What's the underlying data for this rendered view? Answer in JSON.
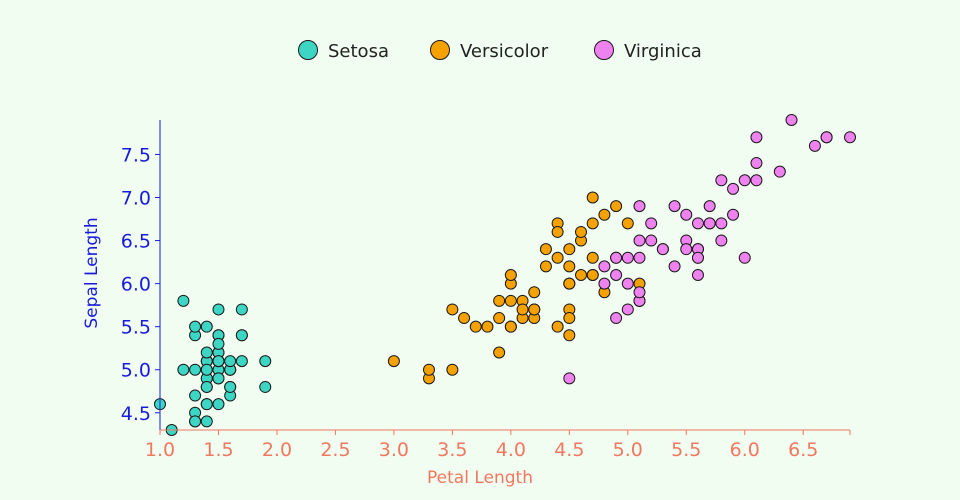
{
  "chart_data": {
    "type": "scatter",
    "xlabel": "Petal Length",
    "ylabel": "Sepal Length",
    "xlim": [
      1.0,
      6.9
    ],
    "ylim": [
      4.3,
      7.9
    ],
    "xticks": [
      "1.0",
      "1.5",
      "2.0",
      "2.5",
      "3.0",
      "3.5",
      "4.0",
      "4.5",
      "5.0",
      "5.5",
      "6.0",
      "6.5"
    ],
    "yticks": [
      "4.5",
      "5.0",
      "5.5",
      "6.0",
      "6.5",
      "7.0",
      "7.5"
    ],
    "x_axis_color": "#f07860",
    "y_axis_color": "#1a1adf",
    "legend_position": "top-center",
    "series": [
      {
        "name": "Setosa",
        "color": "#3dd6c4",
        "points": [
          [
            1.4,
            5.1
          ],
          [
            1.4,
            4.9
          ],
          [
            1.3,
            4.7
          ],
          [
            1.5,
            4.6
          ],
          [
            1.4,
            5.0
          ],
          [
            1.7,
            5.4
          ],
          [
            1.4,
            4.6
          ],
          [
            1.5,
            5.0
          ],
          [
            1.4,
            4.4
          ],
          [
            1.5,
            4.9
          ],
          [
            1.5,
            5.4
          ],
          [
            1.6,
            4.8
          ],
          [
            1.4,
            4.8
          ],
          [
            1.1,
            4.3
          ],
          [
            1.2,
            5.8
          ],
          [
            1.5,
            5.7
          ],
          [
            1.3,
            5.4
          ],
          [
            1.4,
            5.1
          ],
          [
            1.7,
            5.7
          ],
          [
            1.5,
            5.1
          ],
          [
            1.7,
            5.4
          ],
          [
            1.5,
            5.1
          ],
          [
            1.0,
            4.6
          ],
          [
            1.7,
            5.1
          ],
          [
            1.9,
            4.8
          ],
          [
            1.6,
            5.0
          ],
          [
            1.6,
            5.0
          ],
          [
            1.5,
            5.2
          ],
          [
            1.4,
            5.2
          ],
          [
            1.6,
            4.7
          ],
          [
            1.6,
            4.8
          ],
          [
            1.5,
            5.4
          ],
          [
            1.5,
            5.2
          ],
          [
            1.4,
            5.5
          ],
          [
            1.5,
            4.9
          ],
          [
            1.2,
            5.0
          ],
          [
            1.3,
            5.5
          ],
          [
            1.4,
            4.9
          ],
          [
            1.3,
            4.4
          ],
          [
            1.5,
            5.1
          ],
          [
            1.3,
            5.0
          ],
          [
            1.3,
            4.5
          ],
          [
            1.3,
            4.4
          ],
          [
            1.6,
            5.0
          ],
          [
            1.9,
            5.1
          ],
          [
            1.4,
            4.8
          ],
          [
            1.6,
            5.1
          ],
          [
            1.4,
            4.6
          ],
          [
            1.5,
            5.3
          ],
          [
            1.4,
            5.0
          ]
        ]
      },
      {
        "name": "Versicolor",
        "color": "#f5a100",
        "points": [
          [
            4.7,
            7.0
          ],
          [
            4.5,
            6.4
          ],
          [
            4.9,
            6.9
          ],
          [
            4.0,
            5.5
          ],
          [
            4.6,
            6.5
          ],
          [
            4.5,
            5.7
          ],
          [
            4.7,
            6.3
          ],
          [
            3.3,
            4.9
          ],
          [
            4.6,
            6.6
          ],
          [
            3.9,
            5.2
          ],
          [
            3.5,
            5.0
          ],
          [
            4.2,
            5.9
          ],
          [
            4.0,
            6.0
          ],
          [
            4.7,
            6.1
          ],
          [
            3.6,
            5.6
          ],
          [
            4.4,
            6.7
          ],
          [
            4.5,
            5.6
          ],
          [
            4.1,
            5.8
          ],
          [
            4.5,
            6.2
          ],
          [
            3.9,
            5.6
          ],
          [
            4.8,
            5.9
          ],
          [
            4.0,
            6.1
          ],
          [
            4.9,
            6.3
          ],
          [
            4.7,
            6.1
          ],
          [
            4.3,
            6.4
          ],
          [
            4.4,
            6.6
          ],
          [
            4.8,
            6.8
          ],
          [
            5.0,
            6.7
          ],
          [
            4.5,
            6.0
          ],
          [
            3.5,
            5.7
          ],
          [
            3.8,
            5.5
          ],
          [
            3.7,
            5.5
          ],
          [
            3.9,
            5.8
          ],
          [
            5.1,
            6.0
          ],
          [
            4.5,
            5.4
          ],
          [
            4.5,
            6.0
          ],
          [
            4.7,
            6.7
          ],
          [
            4.4,
            6.3
          ],
          [
            4.1,
            5.6
          ],
          [
            4.0,
            5.5
          ],
          [
            4.4,
            5.5
          ],
          [
            4.6,
            6.1
          ],
          [
            4.0,
            5.8
          ],
          [
            3.3,
            5.0
          ],
          [
            4.2,
            5.6
          ],
          [
            4.2,
            5.7
          ],
          [
            4.2,
            5.7
          ],
          [
            4.3,
            6.2
          ],
          [
            3.0,
            5.1
          ],
          [
            4.1,
            5.7
          ]
        ]
      },
      {
        "name": "Virginica",
        "color": "#ee82ee",
        "points": [
          [
            6.0,
            6.3
          ],
          [
            5.1,
            5.8
          ],
          [
            5.9,
            7.1
          ],
          [
            5.6,
            6.3
          ],
          [
            5.8,
            6.5
          ],
          [
            6.6,
            7.6
          ],
          [
            4.5,
            4.9
          ],
          [
            6.3,
            7.3
          ],
          [
            5.8,
            6.7
          ],
          [
            6.1,
            7.2
          ],
          [
            5.1,
            6.5
          ],
          [
            5.3,
            6.4
          ],
          [
            5.5,
            6.8
          ],
          [
            5.0,
            5.7
          ],
          [
            5.1,
            5.8
          ],
          [
            5.3,
            6.4
          ],
          [
            5.5,
            6.5
          ],
          [
            6.7,
            7.7
          ],
          [
            6.9,
            7.7
          ],
          [
            5.0,
            6.0
          ],
          [
            5.7,
            6.9
          ],
          [
            4.9,
            5.6
          ],
          [
            6.7,
            7.7
          ],
          [
            4.9,
            6.3
          ],
          [
            5.7,
            6.7
          ],
          [
            6.0,
            7.2
          ],
          [
            4.8,
            6.2
          ],
          [
            4.9,
            6.1
          ],
          [
            5.6,
            6.4
          ],
          [
            5.8,
            7.2
          ],
          [
            6.1,
            7.4
          ],
          [
            6.4,
            7.9
          ],
          [
            5.6,
            6.4
          ],
          [
            5.1,
            6.3
          ],
          [
            5.6,
            6.1
          ],
          [
            6.1,
            7.7
          ],
          [
            5.6,
            6.3
          ],
          [
            5.5,
            6.4
          ],
          [
            4.8,
            6.0
          ],
          [
            5.4,
            6.9
          ],
          [
            5.6,
            6.7
          ],
          [
            5.1,
            6.9
          ],
          [
            5.1,
            5.8
          ],
          [
            5.9,
            6.8
          ],
          [
            5.7,
            6.7
          ],
          [
            5.2,
            6.7
          ],
          [
            5.0,
            6.3
          ],
          [
            5.2,
            6.5
          ],
          [
            5.4,
            6.2
          ],
          [
            5.1,
            5.9
          ]
        ]
      }
    ]
  }
}
